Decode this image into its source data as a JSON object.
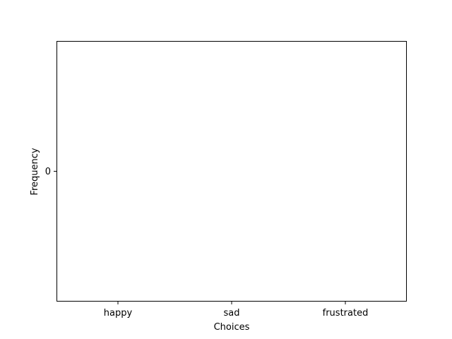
{
  "chart_data": {
    "type": "bar",
    "title": "",
    "xlabel": "Choices",
    "ylabel": "Frequency",
    "categories": [
      "happy",
      "sad",
      "frustrated"
    ],
    "values": [
      0,
      0,
      0
    ],
    "y_ticks": [
      "0"
    ],
    "grid": false,
    "colors": {
      "bar": "#1f77b4",
      "axes": "#000000"
    }
  }
}
